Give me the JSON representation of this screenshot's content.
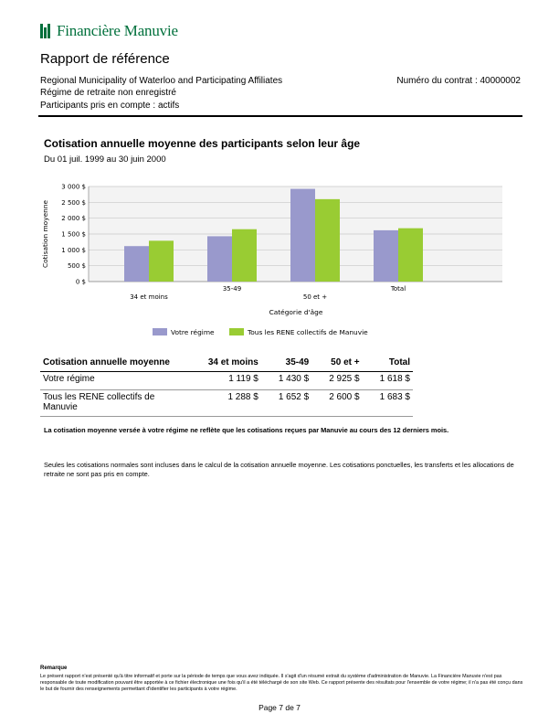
{
  "header": {
    "logo_text": "Financière Manuvie",
    "logo_icon": "manulife-bars-icon",
    "brand_color": "#00703c",
    "title": "Rapport de référence",
    "organization": "Regional Municipality of Waterloo and Participating Affiliates",
    "contract": "Numéro du contrat : 40000002",
    "plan_type": "Régime de retraite non enregistré",
    "participants": "Participants pris en compte : actifs"
  },
  "section": {
    "title": "Cotisation annuelle moyenne des participants selon leur âge",
    "period": "Du 01 juil. 1999 au 30 juin 2000"
  },
  "chart_data": {
    "type": "bar",
    "categories": [
      "34 et moins",
      "35-49",
      "50 et +",
      "Total"
    ],
    "series": [
      {
        "name": "Votre régime",
        "color": "#9999cc",
        "values": [
          1119,
          1430,
          2925,
          1618
        ]
      },
      {
        "name": "Tous les RENE collectifs de Manuvie",
        "color": "#99cc33",
        "values": [
          1288,
          1652,
          2600,
          1683
        ]
      }
    ],
    "xlabel": "Catégorie d'âge",
    "ylabel": "Cotisation moyenne",
    "ylim": [
      0,
      3000
    ],
    "yticks": [
      0,
      500,
      1000,
      1500,
      2000,
      2500,
      3000
    ],
    "ytick_labels": [
      "0 $",
      "500 $",
      "1 000 $",
      "1 500 $",
      "2 000 $",
      "2 500 $",
      "3 000 $"
    ],
    "grid": true,
    "legend": "bottom"
  },
  "table": {
    "headers": [
      "Cotisation annuelle moyenne",
      "34 et moins",
      "35-49",
      "50 et +",
      "Total"
    ],
    "rows": [
      [
        "Votre régime",
        "1 119 $",
        "1 430 $",
        "2 925 $",
        "1 618 $"
      ],
      [
        "Tous les RENE collectifs de Manuvie",
        "1 288 $",
        "1 652 $",
        "2 600 $",
        "1 683 $"
      ]
    ]
  },
  "notes": {
    "bold": "La cotisation moyenne versée à votre régime ne reflète que les cotisations reçues par Manuvie au cours des 12 derniers mois.",
    "plain": "Seules les cotisations normales sont incluses dans le calcul de la cotisation annuelle moyenne. Les cotisations ponctuelles, les transferts et les allocations de retraite ne sont pas pris en compte."
  },
  "remark": {
    "heading": "Remarque",
    "text": "Le présent rapport n'est présenté qu'à titre informatif et porte sur la période de temps que vous avez indiquée. Il s'agit d'un résumé extrait du système d'administration de Manuvie. La Financière Manuvie n'est pas responsable de toute modification pouvant être apportée à ce fichier électronique une fois qu'il a été téléchargé de son site Web. Ce rapport présente des résultats pour l'ensemble de votre régime; il n'a pas été conçu dans le but de fournir des renseignements permettant d'identifier les participants à votre régime."
  },
  "footer": {
    "page": "Page 7 de 7"
  }
}
